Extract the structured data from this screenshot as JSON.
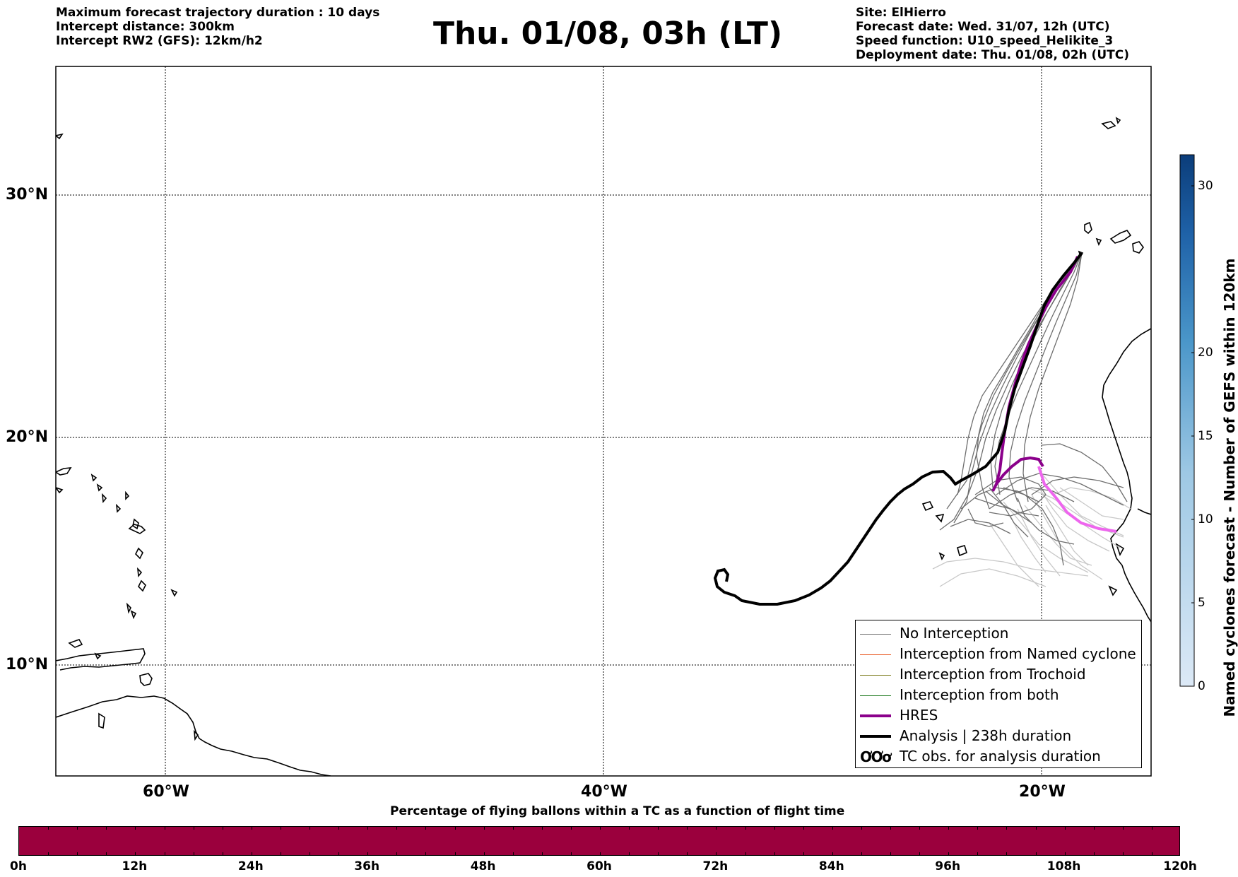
{
  "header": {
    "left_lines": [
      "Maximum forecast trajectory duration : 10 days",
      "Intercept distance: 300km",
      "Intercept RW2 (GFS):  12km/h2"
    ],
    "title": "Thu. 01/08, 03h (LT)",
    "right_lines": [
      "Site: ElHierro",
      "Forecast date: Wed. 31/07, 12h (UTC)",
      "Speed function: U10_speed_Helikite_3",
      "Deployment date: Thu. 01/08, 02h (UTC)"
    ]
  },
  "map": {
    "lat_labels": [
      "30°N",
      "20°N",
      "10°N"
    ],
    "lon_labels": [
      "60°W",
      "40°W",
      "20°W"
    ],
    "gridlines": "dotted"
  },
  "legend": {
    "items": [
      {
        "label": "No Interception",
        "color": "#777777",
        "style": "thin"
      },
      {
        "label": "Interception from Named cyclone",
        "color": "#e8561e",
        "style": "thin"
      },
      {
        "label": "Interception from Trochoid",
        "color": "#7a7a1a",
        "style": "thin"
      },
      {
        "label": "Interception from both",
        "color": "#1f7a1f",
        "style": "thin"
      },
      {
        "label": "HRES",
        "color": "#8b008b",
        "style": "thick"
      },
      {
        "label": "Analysis | 238h duration",
        "color": "#000000",
        "style": "thick"
      },
      {
        "label": "TC obs. for analysis duration",
        "color": "#000000",
        "style": "symbol"
      }
    ],
    "symbol_glyph": "ƠƠơ"
  },
  "flight_time_bar": {
    "title": "Percentage of flying ballons within a TC as a function of flight time",
    "color": "#9b003d",
    "tick_labels": [
      "0h",
      "12h",
      "24h",
      "36h",
      "48h",
      "60h",
      "72h",
      "84h",
      "96h",
      "108h",
      "120h"
    ]
  },
  "cyclone_colorbar": {
    "label": "Named cyclones forecast - Number of GEFS within 120km",
    "ticks": [
      "0",
      "5",
      "10",
      "15",
      "20",
      "30"
    ],
    "color_low": "#dce9f6",
    "color_high": "#0b3d7a"
  },
  "trajectories": {
    "gefs_color": "#6e6e6e",
    "gefs_light_color": "#c8c8c8",
    "hres_color": "#8b008b",
    "hres_forecast_color": "#ee66ee",
    "analysis_color": "#000000"
  }
}
